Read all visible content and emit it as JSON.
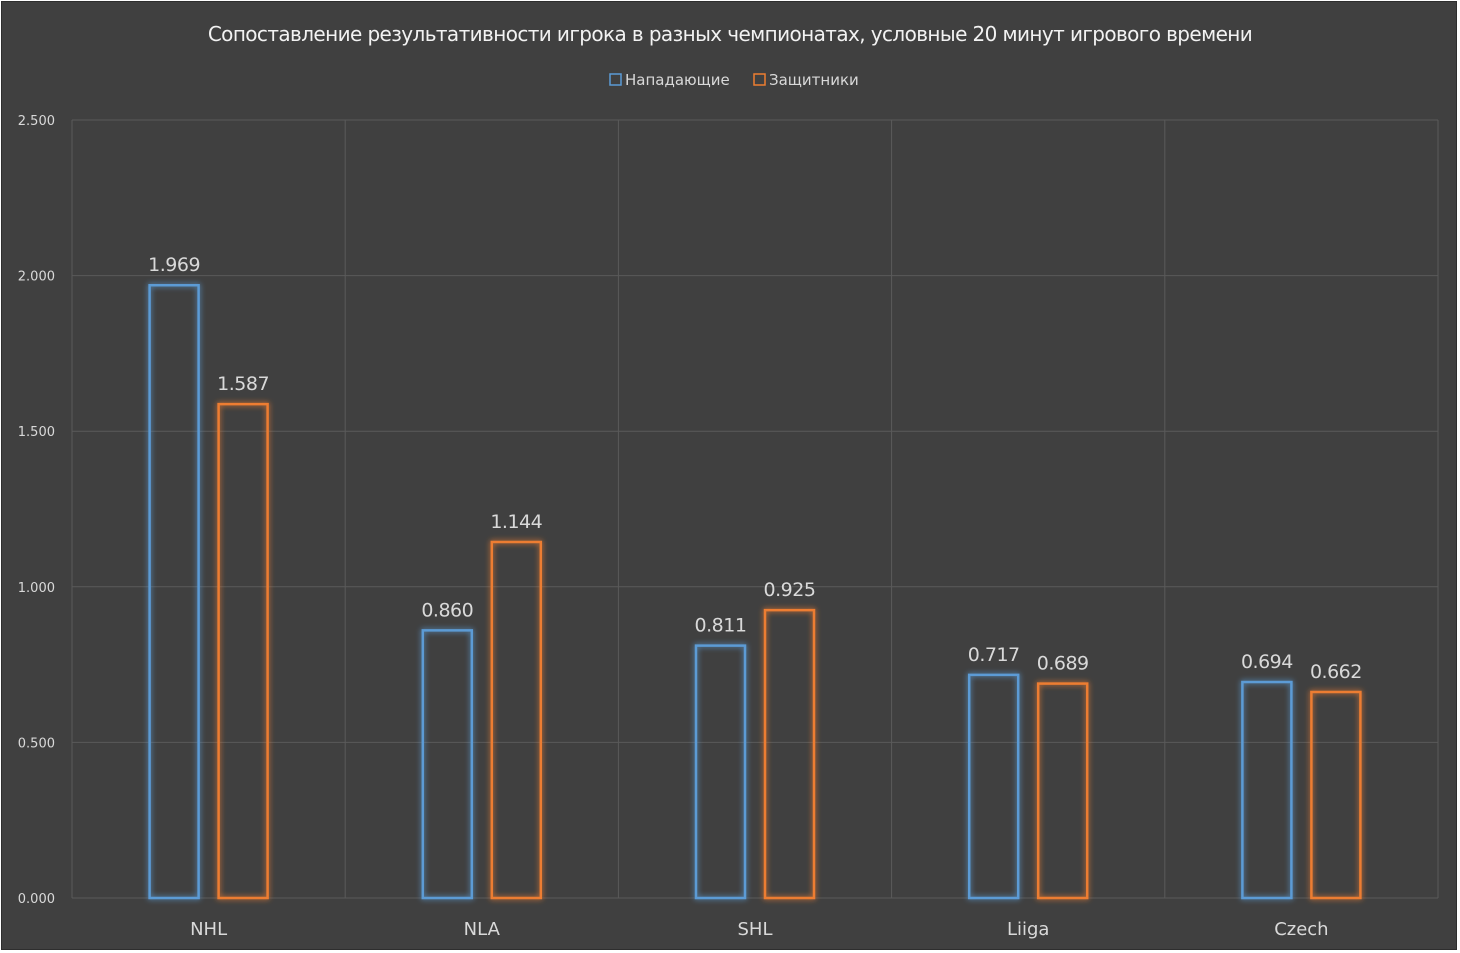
{
  "chart_data": {
    "type": "bar",
    "title": "Сопоставление результативности игрока в разных чемпионатах, условные 20 минут игрового времени",
    "categories": [
      "NHL",
      "NLA",
      "SHL",
      "Liiga",
      "Czech"
    ],
    "series": [
      {
        "name": "Нападающие",
        "color": "#5b9bd5",
        "values": [
          1.969,
          0.86,
          0.811,
          0.717,
          0.694
        ],
        "labels": [
          "1.969",
          "0.860",
          "0.811",
          "0.717",
          "0.694"
        ]
      },
      {
        "name": "Защитники",
        "color": "#ed7d31",
        "values": [
          1.587,
          1.144,
          0.925,
          0.689,
          0.662
        ],
        "labels": [
          "1.587",
          "1.144",
          "0.925",
          "0.689",
          "0.662"
        ]
      }
    ],
    "ylim": [
      0,
      2.5
    ],
    "yticks": [
      "0.000",
      "0.500",
      "1.000",
      "1.500",
      "2.000",
      "2.500"
    ],
    "legend": "top",
    "grid": true,
    "background": "#404040"
  }
}
